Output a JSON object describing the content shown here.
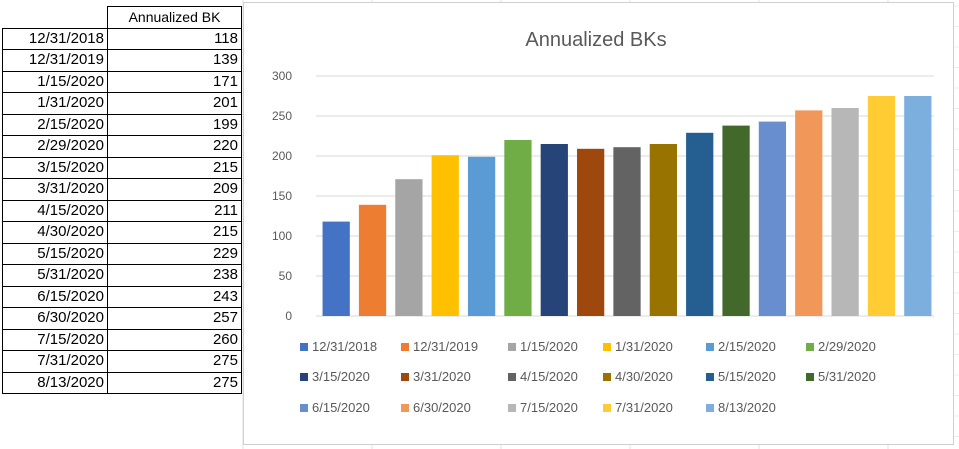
{
  "table": {
    "header": "Annualized BK",
    "rows": [
      {
        "date": "12/31/2018",
        "value": "118"
      },
      {
        "date": "12/31/2019",
        "value": "139"
      },
      {
        "date": "1/15/2020",
        "value": "171"
      },
      {
        "date": "1/31/2020",
        "value": "201"
      },
      {
        "date": "2/15/2020",
        "value": "199"
      },
      {
        "date": "2/29/2020",
        "value": "220"
      },
      {
        "date": "3/15/2020",
        "value": "215"
      },
      {
        "date": "3/31/2020",
        "value": "209"
      },
      {
        "date": "4/15/2020",
        "value": "211"
      },
      {
        "date": "4/30/2020",
        "value": "215"
      },
      {
        "date": "5/15/2020",
        "value": "229"
      },
      {
        "date": "5/31/2020",
        "value": "238"
      },
      {
        "date": "6/15/2020",
        "value": "243"
      },
      {
        "date": "6/30/2020",
        "value": "257"
      },
      {
        "date": "7/15/2020",
        "value": "260"
      },
      {
        "date": "7/31/2020",
        "value": "275"
      },
      {
        "date": "8/13/2020",
        "value": "275"
      }
    ]
  },
  "chart_data": {
    "type": "bar",
    "title": "Annualized BKs",
    "xlabel": "",
    "ylabel": "",
    "ylim": [
      0,
      300
    ],
    "yticks": [
      0,
      50,
      100,
      150,
      200,
      250,
      300
    ],
    "grid": true,
    "legend_position": "bottom",
    "categories": [
      "12/31/2018",
      "12/31/2019",
      "1/15/2020",
      "1/31/2020",
      "2/15/2020",
      "2/29/2020",
      "3/15/2020",
      "3/31/2020",
      "4/15/2020",
      "4/30/2020",
      "5/15/2020",
      "5/31/2020",
      "6/15/2020",
      "6/30/2020",
      "7/15/2020",
      "7/31/2020",
      "8/13/2020"
    ],
    "values": [
      118,
      139,
      171,
      201,
      199,
      220,
      215,
      209,
      211,
      215,
      229,
      238,
      243,
      257,
      260,
      275,
      275
    ],
    "colors": [
      "#4472c4",
      "#ed7d31",
      "#a5a5a5",
      "#ffc000",
      "#5b9bd5",
      "#70ad47",
      "#264478",
      "#9e480e",
      "#636363",
      "#997300",
      "#255e91",
      "#43682b",
      "#698ed0",
      "#f1975a",
      "#b7b7b7",
      "#ffcd33",
      "#7cafdd"
    ]
  }
}
